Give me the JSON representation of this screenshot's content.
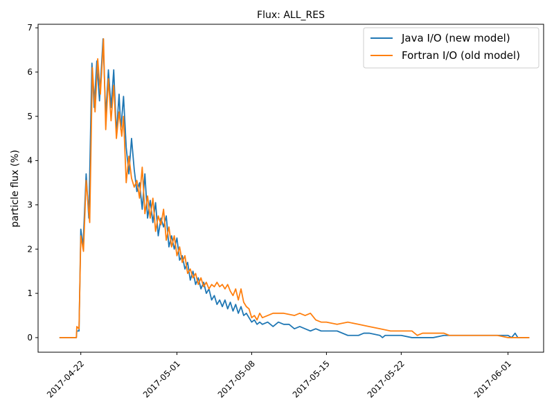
{
  "chart_data": {
    "type": "line",
    "title": "Flux: ALL_RES",
    "xlabel": "",
    "ylabel": "particle flux (%)",
    "ylim": [
      -0.33,
      7.08
    ],
    "xlim": [
      "2017-04-18 00:00",
      "2017-06-04 08:00"
    ],
    "y_ticks": [
      0,
      1,
      2,
      3,
      4,
      5,
      6,
      7
    ],
    "x_ticks": [
      "2017-04-22",
      "2017-05-01",
      "2017-05-08",
      "2017-05-15",
      "2017-05-22",
      "2017-06-01"
    ],
    "grid": false,
    "legend_position": "top-right",
    "series": [
      {
        "name": "Java I/O (new model)",
        "color": "#1f77b4",
        "points": [
          [
            "2017-04-20 00:00",
            0
          ],
          [
            "2017-04-21 14:00",
            0
          ],
          [
            "2017-04-21 15:00",
            0.15
          ],
          [
            "2017-04-21 20:00",
            0.15
          ],
          [
            "2017-04-22 00:00",
            2.45
          ],
          [
            "2017-04-22 05:00",
            2.05
          ],
          [
            "2017-04-22 12:00",
            3.7
          ],
          [
            "2017-04-22 18:00",
            2.7
          ],
          [
            "2017-04-23 01:00",
            6.2
          ],
          [
            "2017-04-23 06:00",
            5.2
          ],
          [
            "2017-04-23 12:00",
            6.25
          ],
          [
            "2017-04-23 18:00",
            5.35
          ],
          [
            "2017-04-24 02:00",
            6.75
          ],
          [
            "2017-04-24 08:00",
            5.0
          ],
          [
            "2017-04-24 14:00",
            6.05
          ],
          [
            "2017-04-24 20:00",
            5.2
          ],
          [
            "2017-04-25 02:00",
            6.05
          ],
          [
            "2017-04-25 08:00",
            4.6
          ],
          [
            "2017-04-25 14:00",
            5.5
          ],
          [
            "2017-04-25 18:00",
            4.7
          ],
          [
            "2017-04-26 00:00",
            5.45
          ],
          [
            "2017-04-26 06:00",
            4.3
          ],
          [
            "2017-04-26 12:00",
            3.7
          ],
          [
            "2017-04-26 18:00",
            4.5
          ],
          [
            "2017-04-27 00:00",
            3.8
          ],
          [
            "2017-04-27 06:00",
            3.3
          ],
          [
            "2017-04-27 12:00",
            3.5
          ],
          [
            "2017-04-27 18:00",
            2.9
          ],
          [
            "2017-04-28 00:00",
            3.7
          ],
          [
            "2017-04-28 06:00",
            2.7
          ],
          [
            "2017-04-28 12:00",
            3.1
          ],
          [
            "2017-04-28 18:00",
            2.6
          ],
          [
            "2017-04-29 00:00",
            3.05
          ],
          [
            "2017-04-29 06:00",
            2.3
          ],
          [
            "2017-04-29 12:00",
            2.7
          ],
          [
            "2017-04-29 18:00",
            2.5
          ],
          [
            "2017-04-30 00:00",
            2.75
          ],
          [
            "2017-04-30 06:00",
            2.05
          ],
          [
            "2017-04-30 12:00",
            2.3
          ],
          [
            "2017-04-30 18:00",
            2.0
          ],
          [
            "2017-05-01 00:00",
            2.25
          ],
          [
            "2017-05-01 06:00",
            1.75
          ],
          [
            "2017-05-01 12:00",
            1.85
          ],
          [
            "2017-05-01 18:00",
            1.55
          ],
          [
            "2017-05-02 00:00",
            1.7
          ],
          [
            "2017-05-02 06:00",
            1.3
          ],
          [
            "2017-05-02 12:00",
            1.5
          ],
          [
            "2017-05-02 18:00",
            1.2
          ],
          [
            "2017-05-03 00:00",
            1.35
          ],
          [
            "2017-05-03 06:00",
            1.1
          ],
          [
            "2017-05-03 12:00",
            1.25
          ],
          [
            "2017-05-03 18:00",
            1.0
          ],
          [
            "2017-05-04 00:00",
            1.1
          ],
          [
            "2017-05-04 06:00",
            0.85
          ],
          [
            "2017-05-04 12:00",
            0.95
          ],
          [
            "2017-05-04 18:00",
            0.75
          ],
          [
            "2017-05-05 00:00",
            0.85
          ],
          [
            "2017-05-05 06:00",
            0.7
          ],
          [
            "2017-05-05 12:00",
            0.85
          ],
          [
            "2017-05-05 18:00",
            0.65
          ],
          [
            "2017-05-06 00:00",
            0.8
          ],
          [
            "2017-05-06 06:00",
            0.6
          ],
          [
            "2017-05-06 12:00",
            0.75
          ],
          [
            "2017-05-06 18:00",
            0.55
          ],
          [
            "2017-05-07 00:00",
            0.7
          ],
          [
            "2017-05-07 06:00",
            0.5
          ],
          [
            "2017-05-07 12:00",
            0.55
          ],
          [
            "2017-05-07 18:00",
            0.45
          ],
          [
            "2017-05-08 00:00",
            0.35
          ],
          [
            "2017-05-08 06:00",
            0.4
          ],
          [
            "2017-05-08 12:00",
            0.3
          ],
          [
            "2017-05-08 18:00",
            0.35
          ],
          [
            "2017-05-09 00:00",
            0.3
          ],
          [
            "2017-05-09 12:00",
            0.35
          ],
          [
            "2017-05-10 00:00",
            0.25
          ],
          [
            "2017-05-10 12:00",
            0.35
          ],
          [
            "2017-05-11 00:00",
            0.3
          ],
          [
            "2017-05-11 12:00",
            0.3
          ],
          [
            "2017-05-12 00:00",
            0.2
          ],
          [
            "2017-05-12 12:00",
            0.25
          ],
          [
            "2017-05-13 00:00",
            0.2
          ],
          [
            "2017-05-13 12:00",
            0.15
          ],
          [
            "2017-05-14 00:00",
            0.2
          ],
          [
            "2017-05-14 12:00",
            0.15
          ],
          [
            "2017-05-15 00:00",
            0.15
          ],
          [
            "2017-05-16 00:00",
            0.15
          ],
          [
            "2017-05-17 00:00",
            0.05
          ],
          [
            "2017-05-18 00:00",
            0.05
          ],
          [
            "2017-05-18 12:00",
            0.1
          ],
          [
            "2017-05-19 00:00",
            0.1
          ],
          [
            "2017-05-20 00:00",
            0.05
          ],
          [
            "2017-05-20 06:00",
            0.0
          ],
          [
            "2017-05-20 12:00",
            0.05
          ],
          [
            "2017-05-21 00:00",
            0.05
          ],
          [
            "2017-05-22 00:00",
            0.05
          ],
          [
            "2017-05-23 00:00",
            0.0
          ],
          [
            "2017-05-25 00:00",
            0.0
          ],
          [
            "2017-05-26 00:00",
            0.05
          ],
          [
            "2017-05-28 00:00",
            0.05
          ],
          [
            "2017-05-30 00:00",
            0.05
          ],
          [
            "2017-06-01 00:00",
            0.05
          ],
          [
            "2017-06-01 08:00",
            0.0
          ],
          [
            "2017-06-01 16:00",
            0.1
          ],
          [
            "2017-06-01 22:00",
            0.0
          ],
          [
            "2017-06-03 00:00",
            0.0
          ]
        ]
      },
      {
        "name": "Fortran I/O (old model)",
        "color": "#ff7f0e",
        "points": [
          [
            "2017-04-20 00:00",
            0
          ],
          [
            "2017-04-21 14:00",
            0
          ],
          [
            "2017-04-21 15:00",
            0.25
          ],
          [
            "2017-04-21 20:00",
            0.2
          ],
          [
            "2017-04-22 00:00",
            2.3
          ],
          [
            "2017-04-22 06:00",
            1.95
          ],
          [
            "2017-04-22 12:00",
            3.55
          ],
          [
            "2017-04-22 20:00",
            2.6
          ],
          [
            "2017-04-23 02:00",
            6.1
          ],
          [
            "2017-04-23 08:00",
            5.1
          ],
          [
            "2017-04-23 14:00",
            6.3
          ],
          [
            "2017-04-23 20:00",
            5.5
          ],
          [
            "2017-04-24 03:00",
            6.75
          ],
          [
            "2017-04-24 08:00",
            4.7
          ],
          [
            "2017-04-24 14:00",
            5.85
          ],
          [
            "2017-04-24 20:00",
            4.9
          ],
          [
            "2017-04-25 02:00",
            5.7
          ],
          [
            "2017-04-25 08:00",
            4.5
          ],
          [
            "2017-04-25 14:00",
            5.1
          ],
          [
            "2017-04-25 20:00",
            4.55
          ],
          [
            "2017-04-26 00:00",
            5.0
          ],
          [
            "2017-04-26 06:00",
            3.5
          ],
          [
            "2017-04-26 12:00",
            4.1
          ],
          [
            "2017-04-26 18:00",
            3.6
          ],
          [
            "2017-04-27 00:00",
            3.4
          ],
          [
            "2017-04-27 06:00",
            3.55
          ],
          [
            "2017-04-27 12:00",
            3.15
          ],
          [
            "2017-04-27 18:00",
            3.85
          ],
          [
            "2017-04-28 00:00",
            2.8
          ],
          [
            "2017-04-28 06:00",
            3.2
          ],
          [
            "2017-04-28 12:00",
            2.7
          ],
          [
            "2017-04-28 18:00",
            3.15
          ],
          [
            "2017-04-29 00:00",
            2.4
          ],
          [
            "2017-04-29 06:00",
            2.75
          ],
          [
            "2017-04-29 12:00",
            2.55
          ],
          [
            "2017-04-29 18:00",
            2.9
          ],
          [
            "2017-04-30 00:00",
            2.2
          ],
          [
            "2017-04-30 06:00",
            2.5
          ],
          [
            "2017-04-30 12:00",
            2.05
          ],
          [
            "2017-04-30 18:00",
            2.3
          ],
          [
            "2017-05-01 00:00",
            1.85
          ],
          [
            "2017-05-01 06:00",
            2.05
          ],
          [
            "2017-05-01 12:00",
            1.7
          ],
          [
            "2017-05-01 18:00",
            1.85
          ],
          [
            "2017-05-02 00:00",
            1.45
          ],
          [
            "2017-05-02 06:00",
            1.55
          ],
          [
            "2017-05-02 12:00",
            1.35
          ],
          [
            "2017-05-02 18:00",
            1.45
          ],
          [
            "2017-05-03 00:00",
            1.2
          ],
          [
            "2017-05-03 06:00",
            1.35
          ],
          [
            "2017-05-03 12:00",
            1.15
          ],
          [
            "2017-05-03 18:00",
            1.25
          ],
          [
            "2017-05-04 00:00",
            1.1
          ],
          [
            "2017-05-04 06:00",
            1.2
          ],
          [
            "2017-05-04 12:00",
            1.15
          ],
          [
            "2017-05-04 18:00",
            1.25
          ],
          [
            "2017-05-05 00:00",
            1.15
          ],
          [
            "2017-05-05 06:00",
            1.2
          ],
          [
            "2017-05-05 12:00",
            1.1
          ],
          [
            "2017-05-05 18:00",
            1.2
          ],
          [
            "2017-05-06 00:00",
            1.05
          ],
          [
            "2017-05-06 06:00",
            0.95
          ],
          [
            "2017-05-06 12:00",
            1.1
          ],
          [
            "2017-05-06 18:00",
            0.85
          ],
          [
            "2017-05-07 00:00",
            1.1
          ],
          [
            "2017-05-07 06:00",
            0.8
          ],
          [
            "2017-05-07 12:00",
            0.7
          ],
          [
            "2017-05-07 18:00",
            0.65
          ],
          [
            "2017-05-08 00:00",
            0.45
          ],
          [
            "2017-05-08 06:00",
            0.5
          ],
          [
            "2017-05-08 12:00",
            0.4
          ],
          [
            "2017-05-08 18:00",
            0.55
          ],
          [
            "2017-05-09 00:00",
            0.45
          ],
          [
            "2017-05-09 12:00",
            0.5
          ],
          [
            "2017-05-10 00:00",
            0.55
          ],
          [
            "2017-05-11 00:00",
            0.55
          ],
          [
            "2017-05-12 00:00",
            0.5
          ],
          [
            "2017-05-12 12:00",
            0.55
          ],
          [
            "2017-05-13 00:00",
            0.5
          ],
          [
            "2017-05-13 12:00",
            0.55
          ],
          [
            "2017-05-14 00:00",
            0.4
          ],
          [
            "2017-05-14 12:00",
            0.35
          ],
          [
            "2017-05-15 00:00",
            0.35
          ],
          [
            "2017-05-16 00:00",
            0.3
          ],
          [
            "2017-05-17 00:00",
            0.35
          ],
          [
            "2017-05-18 00:00",
            0.3
          ],
          [
            "2017-05-19 00:00",
            0.25
          ],
          [
            "2017-05-20 00:00",
            0.2
          ],
          [
            "2017-05-21 00:00",
            0.15
          ],
          [
            "2017-05-22 00:00",
            0.15
          ],
          [
            "2017-05-23 00:00",
            0.15
          ],
          [
            "2017-05-23 12:00",
            0.05
          ],
          [
            "2017-05-24 00:00",
            0.1
          ],
          [
            "2017-05-25 00:00",
            0.1
          ],
          [
            "2017-05-26 00:00",
            0.1
          ],
          [
            "2017-05-26 12:00",
            0.05
          ],
          [
            "2017-05-27 00:00",
            0.05
          ],
          [
            "2017-05-28 00:00",
            0.05
          ],
          [
            "2017-05-30 00:00",
            0.05
          ],
          [
            "2017-05-31 00:00",
            0.05
          ],
          [
            "2017-06-01 00:00",
            0.0
          ],
          [
            "2017-06-03 00:00",
            0.0
          ]
        ]
      }
    ]
  }
}
